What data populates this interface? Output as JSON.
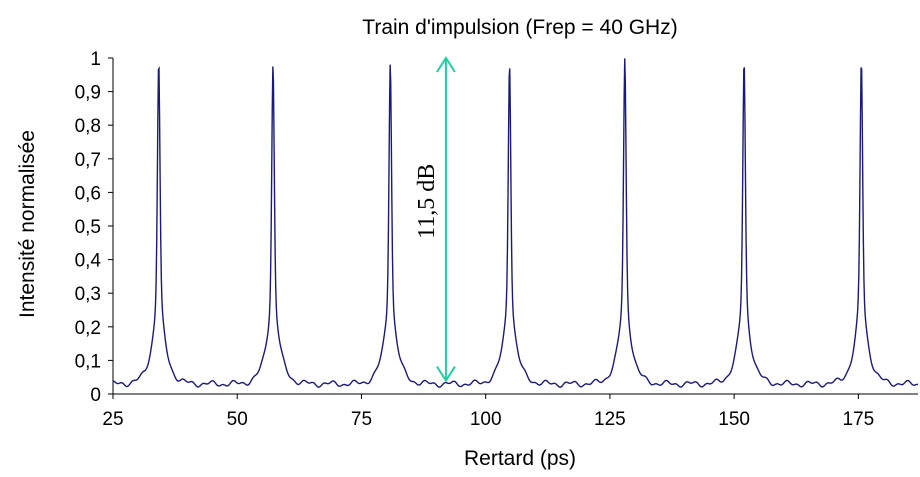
{
  "chart_data": {
    "type": "line",
    "title": "Train d'impulsion (Frep = 40 GHz)",
    "xlabel": "Rertard (ps)",
    "ylabel": "Intensité normalisée",
    "xlim": [
      25,
      187
    ],
    "ylim": [
      0,
      1
    ],
    "x_ticks": [
      "25",
      "50",
      "75",
      "100",
      "125",
      "150",
      "175"
    ],
    "y_ticks": [
      "0",
      "0,1",
      "0,2",
      "0,3",
      "0,4",
      "0,5",
      "0,6",
      "0,7",
      "0,8",
      "0,9",
      "1"
    ],
    "grid": false,
    "legend": "none",
    "line_color": "#1a1a7a",
    "series": [
      {
        "pulse_peaks_ps": [
          34.2,
          57.2,
          80.8,
          104.8,
          128.0,
          152.0,
          175.6
        ],
        "peak_values": [
          1.0,
          0.99,
          1.0,
          1.0,
          1.0,
          1.0,
          1.0
        ],
        "baseline": 0.03
      }
    ],
    "annotation": {
      "text": "11,5 dB",
      "x": 92,
      "y_from": 0.04,
      "y_to": 1.0,
      "color": "#1fcfa0"
    }
  }
}
